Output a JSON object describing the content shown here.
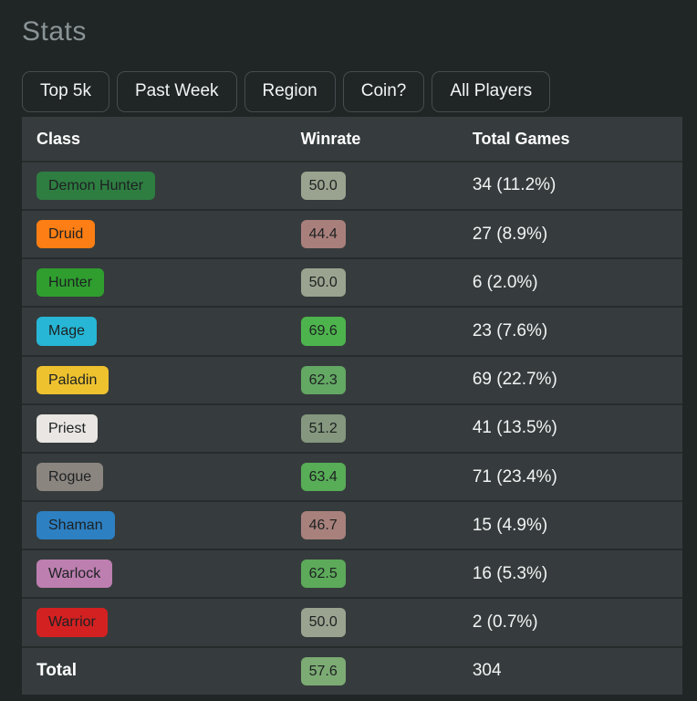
{
  "page": {
    "title": "Stats"
  },
  "filters": [
    {
      "label": "Top 5k"
    },
    {
      "label": "Past Week"
    },
    {
      "label": "Region"
    },
    {
      "label": "Coin?"
    },
    {
      "label": "All Players"
    }
  ],
  "table": {
    "headers": {
      "class": "Class",
      "winrate": "Winrate",
      "total_games": "Total Games"
    },
    "rows": [
      {
        "class": "Demon Hunter",
        "class_color": "#2e7d41",
        "winrate": "50.0",
        "winrate_color": "#9aa38f",
        "total_games": "34 (11.2%)"
      },
      {
        "class": "Druid",
        "class_color": "#fd7e14",
        "winrate": "44.4",
        "winrate_color": "#a97f7c",
        "total_games": "27 (8.9%)"
      },
      {
        "class": "Hunter",
        "class_color": "#2f9e2f",
        "winrate": "50.0",
        "winrate_color": "#9aa38f",
        "total_games": "6 (2.0%)"
      },
      {
        "class": "Mage",
        "class_color": "#27b6d5",
        "winrate": "69.6",
        "winrate_color": "#4db44d",
        "total_games": "23 (7.6%)"
      },
      {
        "class": "Paladin",
        "class_color": "#eec22f",
        "winrate": "62.3",
        "winrate_color": "#63a863",
        "total_games": "69 (22.7%)"
      },
      {
        "class": "Priest",
        "class_color": "#e9e6e3",
        "winrate": "51.2",
        "winrate_color": "#85977e",
        "total_games": "41 (13.5%)"
      },
      {
        "class": "Rogue",
        "class_color": "#8b8580",
        "winrate": "63.4",
        "winrate_color": "#58ad57",
        "total_games": "71 (23.4%)"
      },
      {
        "class": "Shaman",
        "class_color": "#2d80c2",
        "winrate": "46.7",
        "winrate_color": "#a8817c",
        "total_games": "15 (4.9%)"
      },
      {
        "class": "Warlock",
        "class_color": "#bd7fb0",
        "winrate": "62.5",
        "winrate_color": "#5caa5a",
        "total_games": "16 (5.3%)"
      },
      {
        "class": "Warrior",
        "class_color": "#d32121",
        "winrate": "50.0",
        "winrate_color": "#9aa38f",
        "total_games": "2 (0.7%)"
      }
    ],
    "total_row": {
      "label": "Total",
      "winrate": "57.6",
      "winrate_color": "#7cab74",
      "total_games": "304"
    }
  }
}
